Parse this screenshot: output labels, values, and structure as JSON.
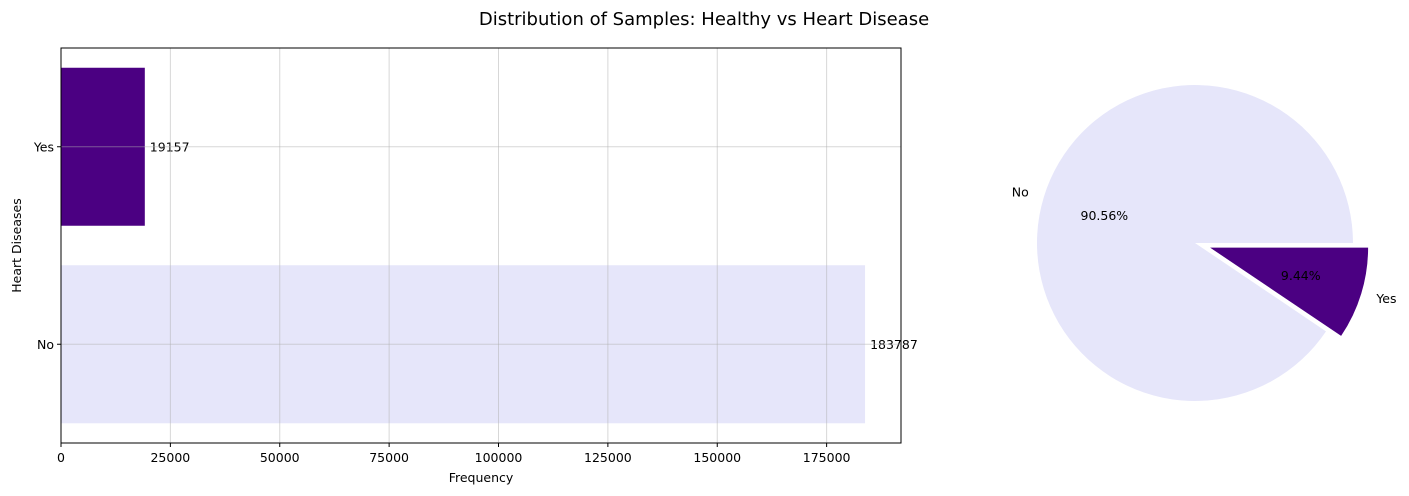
{
  "figure": {
    "title": "Distribution of Samples: Healthy vs Heart Disease"
  },
  "chart_data": [
    {
      "type": "bar",
      "orientation": "horizontal",
      "categories": [
        "No",
        "Yes"
      ],
      "values": [
        183787,
        19157
      ],
      "bar_labels": [
        "183787",
        "19157"
      ],
      "colors": [
        "#e6e6fa",
        "#4b0082"
      ],
      "xlabel": "Frequency",
      "ylabel": "Heart Diseases",
      "xlim": [
        0,
        192000
      ],
      "xticks": [
        0,
        25000,
        50000,
        75000,
        100000,
        125000,
        150000,
        175000
      ],
      "grid": true
    },
    {
      "type": "pie",
      "labels": [
        "No",
        "Yes"
      ],
      "values": [
        90.56,
        9.44
      ],
      "pct_labels": [
        "90.56%",
        "9.44%"
      ],
      "colors": [
        "#e6e6fa",
        "#4b0082"
      ],
      "explode": [
        0,
        0.1
      ]
    }
  ]
}
